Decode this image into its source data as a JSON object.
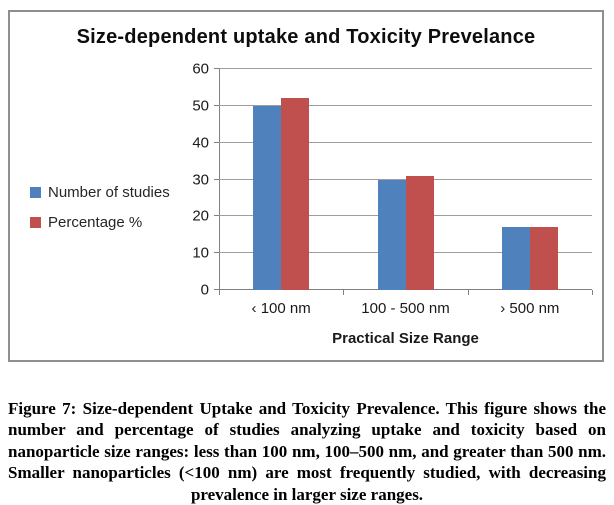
{
  "figure": {
    "caption": "Figure 7: Size-dependent Uptake and Toxicity Prevalence. This figure shows the number and percentage of studies analyzing uptake and toxicity based on nanoparticle size ranges: less than 100 nm, 100–500 nm, and greater than 500 nm. Smaller nanoparticles (<100 nm) are most frequently studied, with decreasing prevalence in larger size ranges."
  },
  "chart_data": {
    "type": "bar",
    "title": "Size-dependent uptake and Toxicity Prevelance",
    "categories": [
      "‹ 100 nm",
      "100 - 500 nm",
      "› 500 nm"
    ],
    "series": [
      {
        "name": "Number of studies",
        "color": "#4F81BD",
        "values": [
          50,
          30,
          17
        ]
      },
      {
        "name": "Percentage %",
        "color": "#C0504D",
        "values": [
          52,
          31,
          17
        ]
      }
    ],
    "xlabel": "Practical Size Range",
    "ylim": [
      0,
      60
    ],
    "ytick_step": 10,
    "grid": true,
    "legend_position": "left",
    "colors": {
      "gridline": "#9D9D9D",
      "axis": "#808080",
      "frame_border": "#8F8F8F"
    }
  }
}
